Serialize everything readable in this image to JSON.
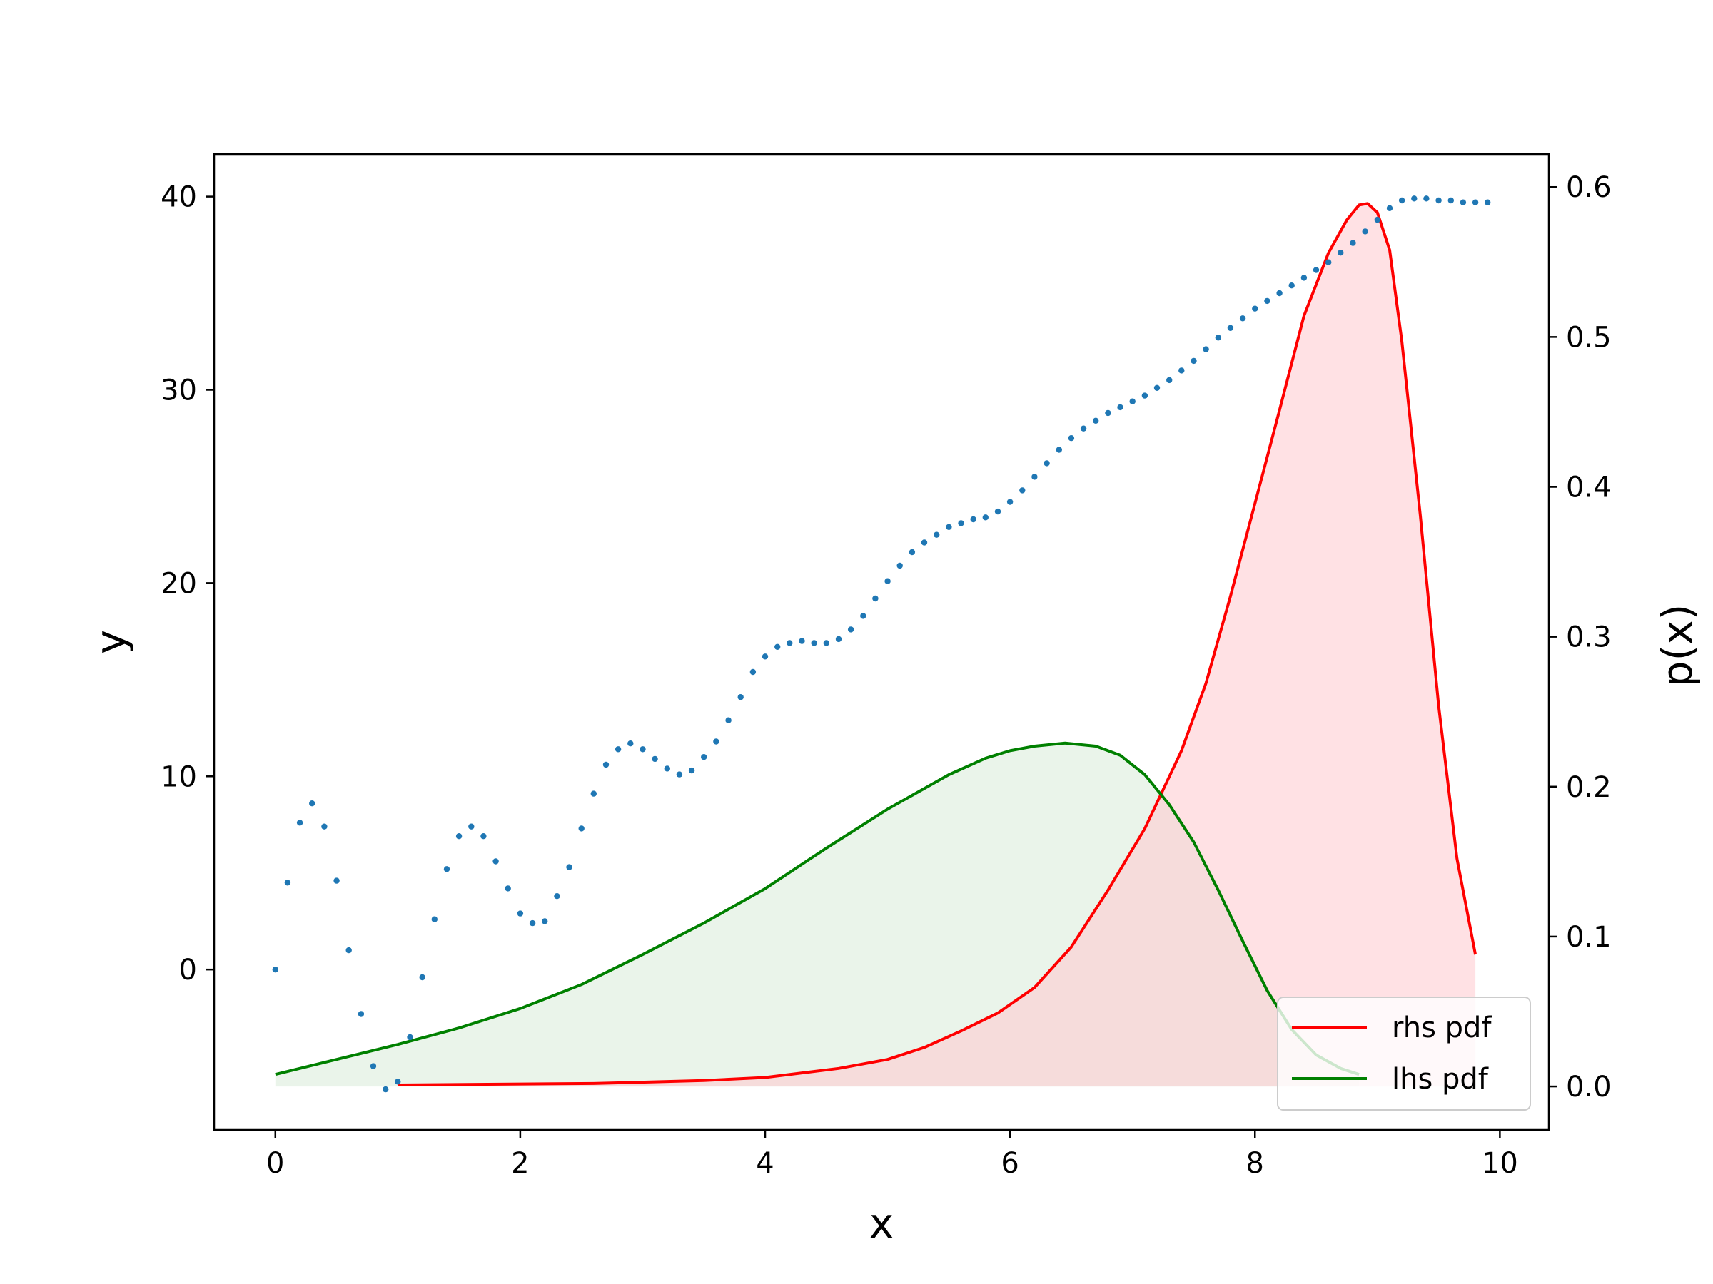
{
  "chart_data": {
    "type": "scatter",
    "xlabel": "x",
    "ylabel": "y",
    "y2label": "p(x)",
    "xlim": [
      -0.5,
      10.4
    ],
    "ylim": [
      -8.3,
      42.2
    ],
    "y2lim": [
      -0.029,
      0.622
    ],
    "xticks": [
      0,
      2,
      4,
      6,
      8,
      10
    ],
    "yticks": [
      0,
      10,
      20,
      30,
      40
    ],
    "y2ticks": [
      0.0,
      0.1,
      0.2,
      0.3,
      0.4,
      0.5,
      0.6
    ],
    "xtick_labels": [
      "0",
      "2",
      "4",
      "6",
      "8",
      "10"
    ],
    "ytick_labels": [
      "0",
      "10",
      "20",
      "30",
      "40"
    ],
    "y2tick_labels": [
      "0.0",
      "0.1",
      "0.2",
      "0.3",
      "0.4",
      "0.5",
      "0.6"
    ],
    "legend_position": "lower-right",
    "grid": false,
    "scatter": {
      "color": "#1f77b4",
      "x_start": 0,
      "x_step": 0.1,
      "y": [
        0,
        4.5,
        7.6,
        8.6,
        7.4,
        4.6,
        1.0,
        -2.3,
        -5.0,
        -6.2,
        -5.8,
        -3.5,
        -0.4,
        2.6,
        5.2,
        6.9,
        7.4,
        6.9,
        5.6,
        4.2,
        2.9,
        2.4,
        2.5,
        3.8,
        5.3,
        7.3,
        9.1,
        10.6,
        11.4,
        11.7,
        11.4,
        10.9,
        10.4,
        10.1,
        10.3,
        11.0,
        11.8,
        12.9,
        14.1,
        15.4,
        16.2,
        16.7,
        16.9,
        17.0,
        16.9,
        16.9,
        17.1,
        17.6,
        18.3,
        19.2,
        20.1,
        20.9,
        21.6,
        22.1,
        22.5,
        22.9,
        23.1,
        23.3,
        23.4,
        23.7,
        24.2,
        24.8,
        25.5,
        26.2,
        26.9,
        27.5,
        28.0,
        28.4,
        28.8,
        29.1,
        29.4,
        29.7,
        30.1,
        30.5,
        31.0,
        31.5,
        32.1,
        32.7,
        33.2,
        33.7,
        34.2,
        34.6,
        35.0,
        35.4,
        35.8,
        36.2,
        36.6,
        37.1,
        37.6,
        38.2,
        38.8,
        39.4,
        39.8,
        39.9,
        39.9,
        39.8,
        39.8,
        39.7,
        39.7,
        39.7
      ]
    },
    "series": [
      {
        "name": "rhs pdf",
        "color": "#ff0000",
        "fill": "#ffc8cd",
        "x": [
          1.0,
          2.6,
          3.5,
          4.0,
          4.6,
          5.0,
          5.3,
          5.6,
          5.9,
          6.2,
          6.5,
          6.8,
          7.1,
          7.4,
          7.6,
          7.8,
          8.0,
          8.2,
          8.4,
          8.6,
          8.75,
          8.85,
          8.92,
          9.0,
          9.1,
          9.2,
          9.35,
          9.5,
          9.65,
          9.8
        ],
        "y": [
          0.001,
          0.002,
          0.004,
          0.006,
          0.012,
          0.018,
          0.026,
          0.037,
          0.049,
          0.066,
          0.093,
          0.131,
          0.172,
          0.224,
          0.269,
          0.327,
          0.389,
          0.451,
          0.514,
          0.556,
          0.578,
          0.588,
          0.589,
          0.583,
          0.558,
          0.497,
          0.381,
          0.254,
          0.152,
          0.088
        ]
      },
      {
        "name": "lhs pdf",
        "color": "#008000",
        "fill": "#d8ebd8",
        "x": [
          0,
          0.5,
          1.0,
          1.5,
          2.0,
          2.5,
          3.0,
          3.5,
          4.0,
          4.5,
          5.0,
          5.5,
          5.8,
          6.0,
          6.2,
          6.45,
          6.7,
          6.9,
          7.1,
          7.3,
          7.5,
          7.7,
          7.9,
          8.1,
          8.3,
          8.5,
          8.7,
          8.85
        ],
        "y": [
          0.008,
          0.018,
          0.028,
          0.039,
          0.052,
          0.068,
          0.088,
          0.109,
          0.132,
          0.159,
          0.185,
          0.208,
          0.219,
          0.224,
          0.227,
          0.229,
          0.227,
          0.221,
          0.208,
          0.188,
          0.163,
          0.131,
          0.097,
          0.064,
          0.038,
          0.021,
          0.012,
          0.008
        ]
      }
    ]
  }
}
